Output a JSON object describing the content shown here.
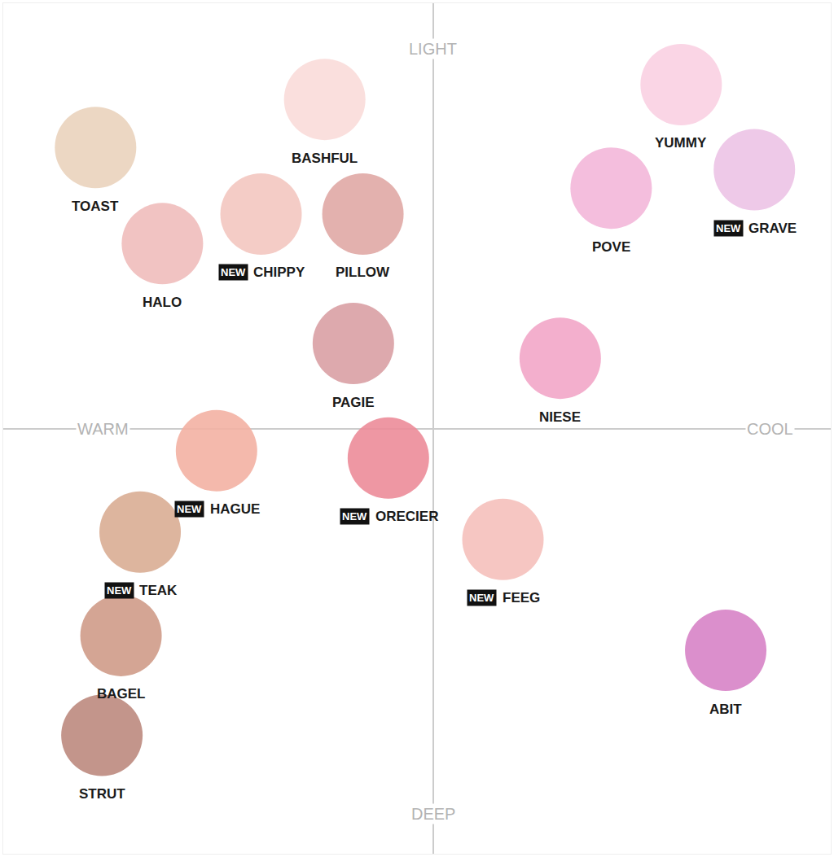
{
  "chart_data": {
    "type": "scatter",
    "labels": [
      "TOAST",
      "BASHFUL",
      "HALO",
      "CHIPPY",
      "PILLOW",
      "PAGIE",
      "NIESE",
      "YUMMY",
      "POVE",
      "GRAVE",
      "HAGUE",
      "ORECIER",
      "FEEG",
      "TEAK",
      "BAGEL",
      "STRUT",
      "ABIT"
    ],
    "x": [
      -106,
      -34,
      -85,
      -54,
      -22,
      -25,
      40,
      78,
      56,
      101,
      -68,
      -14,
      22,
      -92,
      -98,
      -104,
      92
    ],
    "y": [
      76,
      89,
      50,
      58,
      58,
      23,
      19,
      93,
      65,
      70,
      -6,
      -8,
      -30,
      -28,
      -56,
      -83,
      -60
    ],
    "colors": [
      "#ead3bd",
      "#f9dcd9",
      "#efbdbb",
      "#f3c6c0",
      "#e0a9a5",
      "#d9a0a4",
      "#f2a6c8",
      "#f9d0e2",
      "#f3b7d9",
      "#ecc3e6",
      "#f3b1a3",
      "#ec8c99",
      "#f5c0bb",
      "#d9ad94",
      "#cf9b88",
      "#bd8a7e",
      "#d783c6"
    ],
    "new": [
      false,
      false,
      false,
      true,
      false,
      false,
      false,
      false,
      false,
      true,
      true,
      true,
      true,
      true,
      false,
      false,
      false
    ],
    "badge": "NEW",
    "axis_labels": {
      "top": "LIGHT",
      "bottom": "DEEP",
      "left": "WARM",
      "right": "COOL"
    },
    "xlim": [
      -135,
      125
    ],
    "ylim": [
      -115,
      115
    ],
    "tick_labels": false,
    "grid": false
  }
}
